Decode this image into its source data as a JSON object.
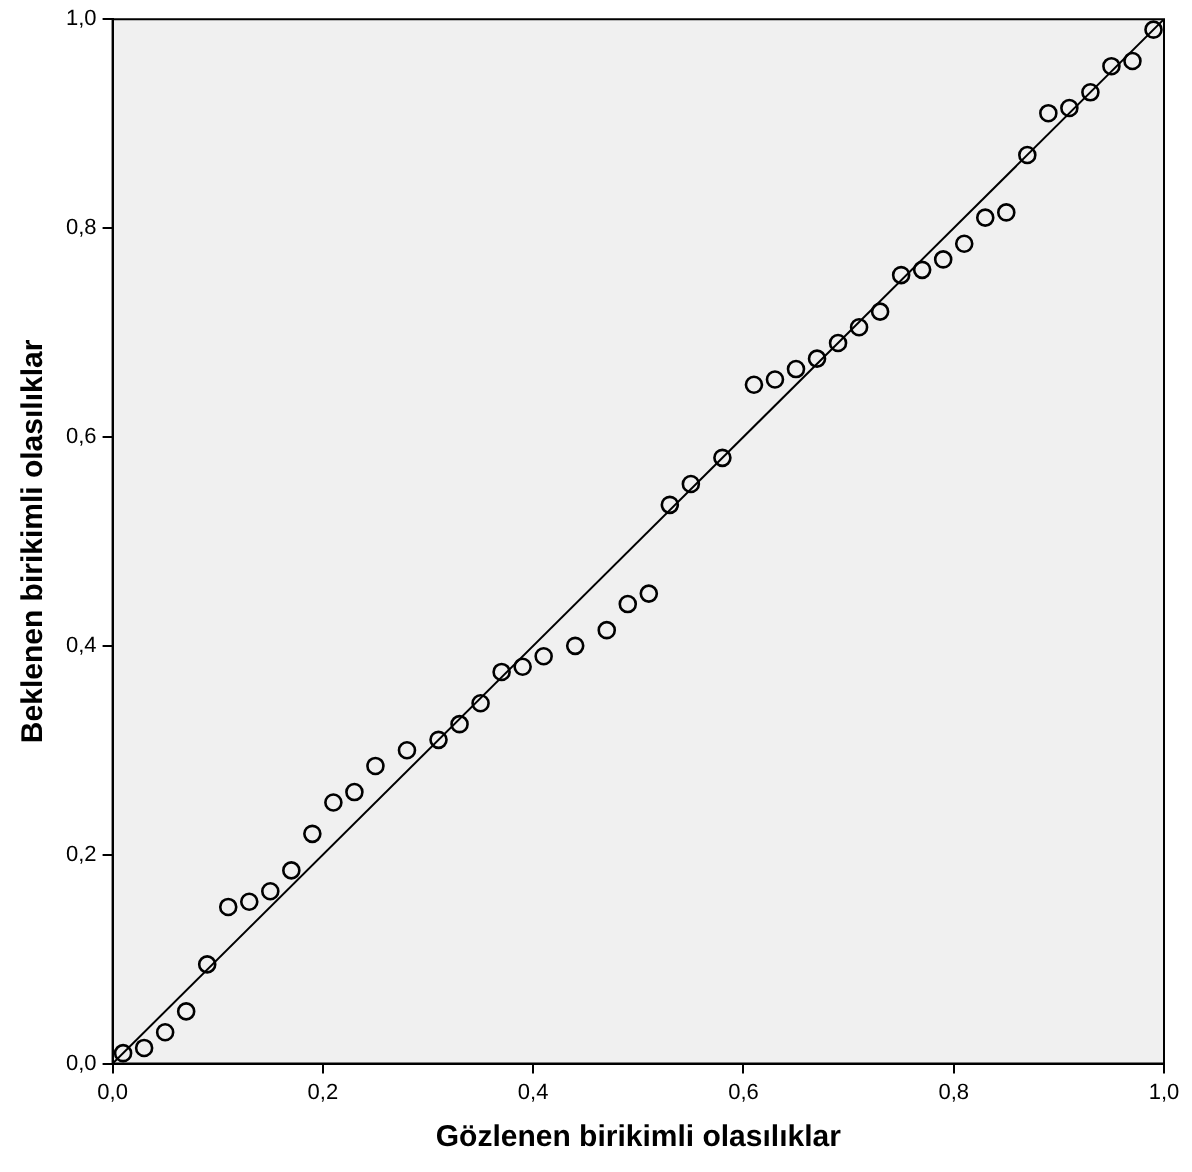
{
  "chart_data": {
    "type": "scatter",
    "xlabel": "Gözlenen birikimli olasılıklar",
    "ylabel": "Beklenen birikimli olasılıklar",
    "grid": false,
    "xlim": [
      0,
      1
    ],
    "ylim": [
      0,
      1
    ],
    "xticks": [
      {
        "value": 0,
        "label": "0,0"
      },
      {
        "value": 0.2,
        "label": "0,2"
      },
      {
        "value": 0.4,
        "label": "0,4"
      },
      {
        "value": 0.6,
        "label": "0,6"
      },
      {
        "value": 0.8,
        "label": "0,8"
      },
      {
        "value": 1,
        "label": "1,0"
      }
    ],
    "yticks": [
      {
        "value": 0,
        "label": "0,0"
      },
      {
        "value": 0.2,
        "label": "0,2"
      },
      {
        "value": 0.4,
        "label": "0,4"
      },
      {
        "value": 0.6,
        "label": "0,6"
      },
      {
        "value": 0.8,
        "label": "0,8"
      },
      {
        "value": 1,
        "label": "1,0"
      }
    ],
    "series": [
      {
        "marker": "circle",
        "color": "#000000",
        "x": [
          0.01,
          0.03,
          0.05,
          0.07,
          0.09,
          0.11,
          0.13,
          0.15,
          0.17,
          0.19,
          0.21,
          0.23,
          0.25,
          0.28,
          0.31,
          0.33,
          0.35,
          0.37,
          0.39,
          0.41,
          0.44,
          0.47,
          0.49,
          0.51,
          0.53,
          0.55,
          0.58,
          0.61,
          0.63,
          0.65,
          0.67,
          0.69,
          0.71,
          0.73,
          0.75,
          0.77,
          0.79,
          0.81,
          0.83,
          0.85,
          0.87,
          0.89,
          0.91,
          0.93,
          0.95,
          0.97,
          0.99
        ],
        "values": [
          0.01,
          0.015,
          0.03,
          0.05,
          0.095,
          0.15,
          0.155,
          0.165,
          0.185,
          0.22,
          0.25,
          0.26,
          0.285,
          0.3,
          0.31,
          0.325,
          0.345,
          0.375,
          0.38,
          0.39,
          0.4,
          0.415,
          0.44,
          0.45,
          0.535,
          0.555,
          0.58,
          0.65,
          0.655,
          0.665,
          0.675,
          0.69,
          0.705,
          0.72,
          0.755,
          0.76,
          0.77,
          0.785,
          0.81,
          0.815,
          0.87,
          0.91,
          0.915,
          0.93,
          0.955,
          0.96,
          0.99
        ]
      },
      {
        "type": "line",
        "marker": "none",
        "color": "#000000",
        "x": [
          0,
          1
        ],
        "values": [
          0,
          1
        ]
      }
    ]
  }
}
